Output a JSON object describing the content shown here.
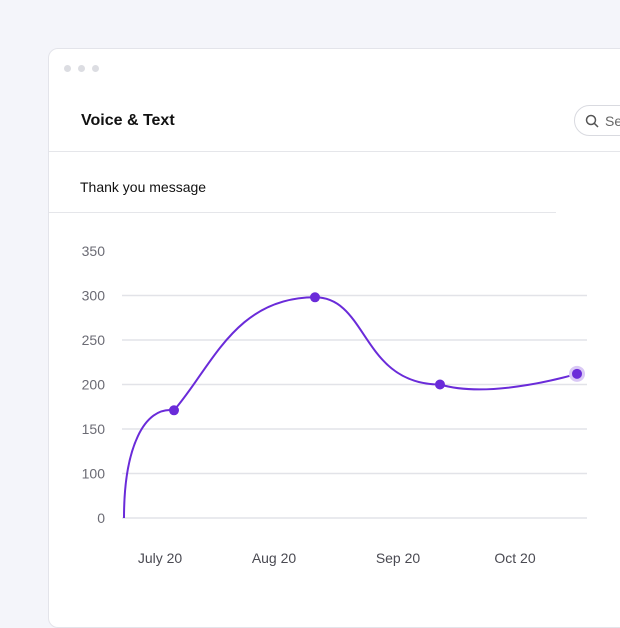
{
  "window": {
    "title": "Voice & Text",
    "search_placeholder": "Search"
  },
  "section": {
    "title": "Thank you message"
  },
  "colors": {
    "accent": "#6a2bd9",
    "grid": "#e2e3e8",
    "background": "#f4f5fa"
  },
  "chart_data": {
    "type": "line",
    "smooth": true,
    "y_tick_labels": [
      "0",
      "100",
      "150",
      "200",
      "250",
      "300",
      "350"
    ],
    "x_tick_labels": [
      "July 20",
      "Aug 20",
      "Sep 20",
      "Oct 20"
    ],
    "values": [
      0,
      171,
      298,
      200,
      212
    ],
    "grid": true,
    "highlighted_point": "last"
  }
}
